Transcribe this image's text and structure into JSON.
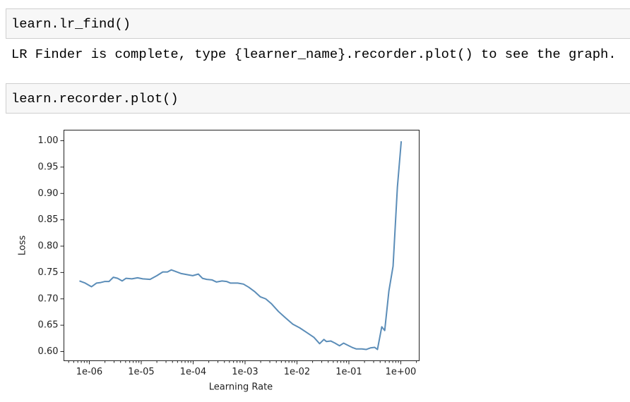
{
  "cells": [
    {
      "input": "learn.lr_find()",
      "output": "LR Finder is complete, type {learner_name}.recorder.plot() to see the graph."
    },
    {
      "input": "learn.recorder.plot()"
    }
  ],
  "chart_data": {
    "type": "line",
    "x_label": "Learning Rate",
    "y_label": "Loss",
    "xscale": "log",
    "color": "#5b8db8",
    "x": [
      6.45e-07,
      8.3e-07,
      1.1e-06,
      1.38e-06,
      1.66e-06,
      2e-06,
      2.4e-06,
      2.9e-06,
      3.5e-06,
      4.3e-06,
      5.1e-06,
      6.6e-06,
      8.5e-06,
      1.07e-05,
      1.48e-05,
      2e-05,
      2.6e-05,
      3.2e-05,
      3.8e-05,
      4.6e-05,
      5.9e-05,
      7.6e-05,
      9.8e-05,
      0.000126,
      0.000151,
      0.000182,
      0.00023,
      0.00028,
      0.00036,
      0.00044,
      0.00052,
      0.00072,
      0.00093,
      0.00118,
      0.00152,
      0.00196,
      0.0025,
      0.0032,
      0.0044,
      0.006,
      0.0083,
      0.0113,
      0.0155,
      0.0212,
      0.0273,
      0.033,
      0.037,
      0.045,
      0.054,
      0.066,
      0.079,
      0.095,
      0.115,
      0.139,
      0.178,
      0.215,
      0.26,
      0.314,
      0.355,
      0.43,
      0.49,
      0.59,
      0.71,
      0.86,
      1.02
    ],
    "values": [
      0.734,
      0.73,
      0.723,
      0.73,
      0.731,
      0.733,
      0.733,
      0.741,
      0.739,
      0.734,
      0.739,
      0.738,
      0.74,
      0.738,
      0.737,
      0.744,
      0.751,
      0.751,
      0.755,
      0.752,
      0.748,
      0.746,
      0.744,
      0.747,
      0.739,
      0.737,
      0.736,
      0.732,
      0.734,
      0.733,
      0.73,
      0.73,
      0.728,
      0.722,
      0.714,
      0.704,
      0.7,
      0.691,
      0.676,
      0.664,
      0.652,
      0.645,
      0.636,
      0.627,
      0.615,
      0.623,
      0.619,
      0.62,
      0.616,
      0.611,
      0.616,
      0.612,
      0.608,
      0.605,
      0.605,
      0.604,
      0.607,
      0.608,
      0.604,
      0.647,
      0.64,
      0.715,
      0.762,
      0.912,
      0.999
    ],
    "xlim": [
      3.24e-07,
      2.26
    ],
    "ylim": [
      0.5826,
      1.0201
    ],
    "xticks": [
      {
        "value": 1e-06,
        "label": "1e-06"
      },
      {
        "value": 1e-05,
        "label": "1e-05"
      },
      {
        "value": 0.0001,
        "label": "1e-04"
      },
      {
        "value": 0.001,
        "label": "1e-03"
      },
      {
        "value": 0.01,
        "label": "1e-02"
      },
      {
        "value": 0.1,
        "label": "1e-01"
      },
      {
        "value": 1,
        "label": "1e+00"
      }
    ],
    "yticks": [
      {
        "value": 0.6,
        "label": "0.60"
      },
      0.65,
      {
        "value": 0.7,
        "label": "0.70"
      },
      0.75,
      {
        "value": 0.8,
        "label": "0.80"
      },
      0.85,
      {
        "value": 0.9,
        "label": "0.90"
      },
      0.95,
      {
        "value": 1.0,
        "label": "1.00"
      }
    ]
  }
}
